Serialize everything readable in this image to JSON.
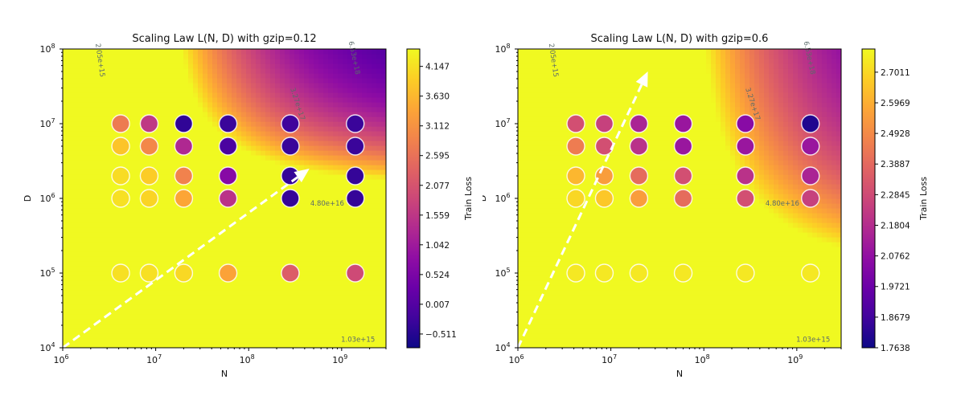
{
  "chart_data": [
    {
      "type": "heatmap",
      "title": "Scaling Law L(N, D) with gzip=0.12",
      "xlabel": "N",
      "ylabel": "D",
      "xscale": "log",
      "yscale": "log",
      "xlim": [
        1000000,
        3000000000
      ],
      "ylim": [
        10000,
        100000000
      ],
      "x_ticks": [
        {
          "value": 1000000,
          "mant": "10",
          "exp": "6"
        },
        {
          "value": 10000000,
          "mant": "10",
          "exp": "7"
        },
        {
          "value": 100000000,
          "mant": "10",
          "exp": "8"
        },
        {
          "value": 1000000000,
          "mant": "10",
          "exp": "9"
        }
      ],
      "y_ticks": [
        {
          "value": 10000,
          "mant": "10",
          "exp": "4"
        },
        {
          "value": 100000,
          "mant": "10",
          "exp": "5"
        },
        {
          "value": 1000000,
          "mant": "10",
          "exp": "6"
        },
        {
          "value": 10000000,
          "mant": "10",
          "exp": "7"
        },
        {
          "value": 100000000,
          "mant": "10",
          "exp": "8"
        }
      ],
      "colorbar": {
        "label": "Train Loss",
        "ticks": [
          "4.147",
          "3.630",
          "3.112",
          "2.595",
          "2.077",
          "1.559",
          "1.042",
          "0.524",
          "0.007",
          "−0.511"
        ],
        "range": [
          -0.75,
          4.45
        ]
      },
      "model": {
        "base": -1.0,
        "A": 1.6,
        "alpha": 0.45,
        "B": 3.3,
        "beta": 0.55,
        "n0": 1.3,
        "d0": 2.2
      },
      "contour_labels": [
        {
          "text": "2.05e+15",
          "x": 2400000,
          "y": 70000000,
          "rot": 82
        },
        {
          "text": "3.27e+17",
          "x": 320000000,
          "y": 18000000,
          "rot": 72
        },
        {
          "text": "6.53e+18",
          "x": 1300000000,
          "y": 75000000,
          "rot": 78
        },
        {
          "text": "4.80e+16",
          "x": 700000000,
          "y": 800000,
          "rot": 0
        },
        {
          "text": "1.03e+15",
          "x": 1500000000,
          "y": 12000,
          "rot": 0
        }
      ],
      "arrow": {
        "from": [
          1000000,
          10000
        ],
        "to": [
          450000000,
          2500000
        ]
      },
      "points": [
        {
          "n": 4200000,
          "d": 10000000,
          "loss": 2.75
        },
        {
          "n": 8500000,
          "d": 10000000,
          "loss": 1.6
        },
        {
          "n": 20000000,
          "d": 10000000,
          "loss": -0.4
        },
        {
          "n": 60000000,
          "d": 10000000,
          "loss": -0.3
        },
        {
          "n": 280000000,
          "d": 10000000,
          "loss": -0.25
        },
        {
          "n": 1400000000,
          "d": 10000000,
          "loss": -0.3
        },
        {
          "n": 4200000,
          "d": 5000000,
          "loss": 3.8
        },
        {
          "n": 8500000,
          "d": 5000000,
          "loss": 2.95
        },
        {
          "n": 20000000,
          "d": 5000000,
          "loss": 1.3
        },
        {
          "n": 60000000,
          "d": 5000000,
          "loss": -0.1
        },
        {
          "n": 280000000,
          "d": 5000000,
          "loss": -0.3
        },
        {
          "n": 1400000000,
          "d": 5000000,
          "loss": -0.3
        },
        {
          "n": 4200000,
          "d": 2000000,
          "loss": 4.1
        },
        {
          "n": 8500000,
          "d": 2000000,
          "loss": 3.9
        },
        {
          "n": 20000000,
          "d": 2000000,
          "loss": 2.85
        },
        {
          "n": 60000000,
          "d": 2000000,
          "loss": 0.7
        },
        {
          "n": 280000000,
          "d": 2000000,
          "loss": -0.35
        },
        {
          "n": 1400000000,
          "d": 2000000,
          "loss": -0.35
        },
        {
          "n": 4200000,
          "d": 1000000,
          "loss": 4.15
        },
        {
          "n": 8500000,
          "d": 1000000,
          "loss": 4.0
        },
        {
          "n": 20000000,
          "d": 1000000,
          "loss": 3.4
        },
        {
          "n": 60000000,
          "d": 1000000,
          "loss": 1.5
        },
        {
          "n": 280000000,
          "d": 1000000,
          "loss": -0.35
        },
        {
          "n": 1400000000,
          "d": 1000000,
          "loss": -0.35
        },
        {
          "n": 4200000,
          "d": 100000,
          "loss": 4.15
        },
        {
          "n": 8500000,
          "d": 100000,
          "loss": 4.15
        },
        {
          "n": 20000000,
          "d": 100000,
          "loss": 4.05
        },
        {
          "n": 60000000,
          "d": 100000,
          "loss": 3.35
        },
        {
          "n": 280000000,
          "d": 100000,
          "loss": 2.25
        },
        {
          "n": 1400000000,
          "d": 100000,
          "loss": 1.9
        }
      ]
    },
    {
      "type": "heatmap",
      "title": "Scaling Law L(N, D) with gzip=0.6",
      "xlabel": "N",
      "ylabel": "D",
      "xscale": "log",
      "yscale": "log",
      "xlim": [
        1000000,
        3000000000
      ],
      "ylim": [
        10000,
        100000000
      ],
      "x_ticks": [
        {
          "value": 1000000,
          "mant": "10",
          "exp": "6"
        },
        {
          "value": 10000000,
          "mant": "10",
          "exp": "7"
        },
        {
          "value": 100000000,
          "mant": "10",
          "exp": "8"
        },
        {
          "value": 1000000000,
          "mant": "10",
          "exp": "9"
        }
      ],
      "y_ticks": [
        {
          "value": 10000,
          "mant": "10",
          "exp": "4"
        },
        {
          "value": 100000,
          "mant": "10",
          "exp": "5"
        },
        {
          "value": 1000000,
          "mant": "10",
          "exp": "6"
        },
        {
          "value": 10000000,
          "mant": "10",
          "exp": "7"
        },
        {
          "value": 100000000,
          "mant": "10",
          "exp": "8"
        }
      ],
      "colorbar": {
        "label": "Train Loss",
        "ticks": [
          "2.7011",
          "2.5969",
          "2.4928",
          "2.3887",
          "2.2845",
          "2.1804",
          "2.0762",
          "1.9721",
          "1.8679",
          "1.7638"
        ],
        "range": [
          1.7638,
          2.78
        ]
      },
      "model": {
        "base": 1.75,
        "A": 0.55,
        "alpha": 0.4,
        "B": 0.7,
        "beta": 0.35,
        "n0": 1.4,
        "d0": 0.9
      },
      "contour_labels": [
        {
          "text": "2.05e+15",
          "x": 2300000,
          "y": 70000000,
          "rot": 82
        },
        {
          "text": "3.27e+17",
          "x": 320000000,
          "y": 18000000,
          "rot": 72
        },
        {
          "text": "6.53e+18",
          "x": 1300000000,
          "y": 75000000,
          "rot": 78
        },
        {
          "text": "4.80e+16",
          "x": 700000000,
          "y": 800000,
          "rot": 0
        },
        {
          "text": "1.03e+15",
          "x": 1500000000,
          "y": 12000,
          "rot": 0
        }
      ],
      "arrow": {
        "from": [
          1000000,
          10000
        ],
        "to": [
          25000000,
          50000000
        ]
      },
      "points": [
        {
          "n": 4200000,
          "d": 10000000,
          "loss": 2.3
        },
        {
          "n": 8500000,
          "d": 10000000,
          "loss": 2.25
        },
        {
          "n": 20000000,
          "d": 10000000,
          "loss": 2.15
        },
        {
          "n": 60000000,
          "d": 10000000,
          "loss": 2.1
        },
        {
          "n": 280000000,
          "d": 10000000,
          "loss": 2.05
        },
        {
          "n": 1400000000,
          "d": 10000000,
          "loss": 1.8
        },
        {
          "n": 4200000,
          "d": 5000000,
          "loss": 2.45
        },
        {
          "n": 8500000,
          "d": 5000000,
          "loss": 2.3
        },
        {
          "n": 20000000,
          "d": 5000000,
          "loss": 2.2
        },
        {
          "n": 60000000,
          "d": 5000000,
          "loss": 2.1
        },
        {
          "n": 280000000,
          "d": 5000000,
          "loss": 2.1
        },
        {
          "n": 1400000000,
          "d": 5000000,
          "loss": 2.1
        },
        {
          "n": 4200000,
          "d": 2000000,
          "loss": 2.62
        },
        {
          "n": 8500000,
          "d": 2000000,
          "loss": 2.55
        },
        {
          "n": 20000000,
          "d": 2000000,
          "loss": 2.4
        },
        {
          "n": 60000000,
          "d": 2000000,
          "loss": 2.3
        },
        {
          "n": 280000000,
          "d": 2000000,
          "loss": 2.2
        },
        {
          "n": 1400000000,
          "d": 2000000,
          "loss": 2.15
        },
        {
          "n": 4200000,
          "d": 1000000,
          "loss": 2.7
        },
        {
          "n": 8500000,
          "d": 1000000,
          "loss": 2.66
        },
        {
          "n": 20000000,
          "d": 1000000,
          "loss": 2.55
        },
        {
          "n": 60000000,
          "d": 1000000,
          "loss": 2.4
        },
        {
          "n": 280000000,
          "d": 1000000,
          "loss": 2.3
        },
        {
          "n": 1400000000,
          "d": 1000000,
          "loss": 2.25
        },
        {
          "n": 4200000,
          "d": 100000,
          "loss": 2.74
        },
        {
          "n": 8500000,
          "d": 100000,
          "loss": 2.74
        },
        {
          "n": 20000000,
          "d": 100000,
          "loss": 2.74
        },
        {
          "n": 60000000,
          "d": 100000,
          "loss": 2.74
        },
        {
          "n": 280000000,
          "d": 100000,
          "loss": 2.74
        },
        {
          "n": 1400000000,
          "d": 100000,
          "loss": 2.74
        }
      ]
    }
  ]
}
